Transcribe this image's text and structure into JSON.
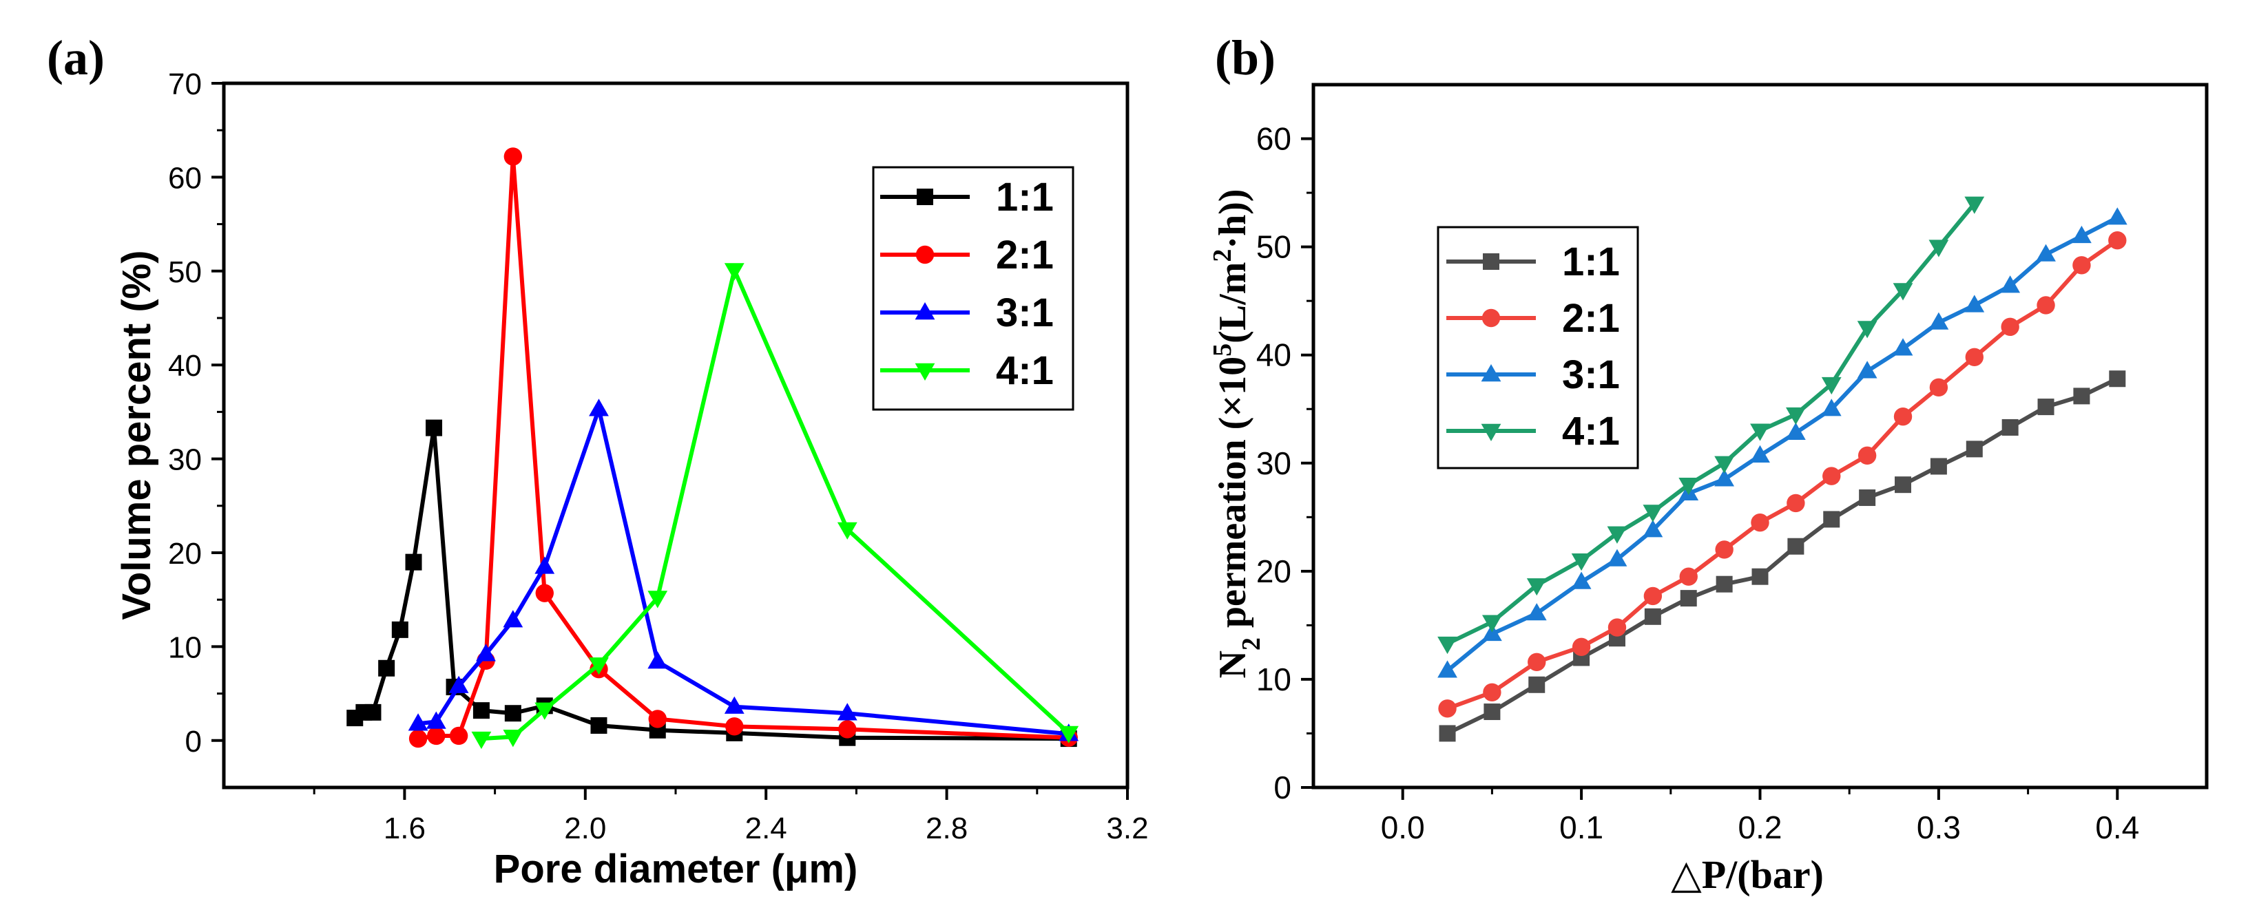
{
  "panels": [
    {
      "label": "(a)",
      "chart_data": {
        "type": "line",
        "xlabel": "Pore diameter (μm)",
        "ylabel": "Volume percent (%)",
        "xlim": [
          1.2,
          3.2
        ],
        "ylim": [
          -5,
          70
        ],
        "xticks": [
          1.6,
          2.0,
          2.4,
          2.8,
          3.2
        ],
        "xtick_labels": [
          "1.6",
          "2.0",
          "2.4",
          "2.8",
          "3.2"
        ],
        "yticks": [
          0,
          10,
          20,
          30,
          40,
          50,
          60,
          70
        ],
        "ytick_labels": [
          "0",
          "10",
          "20",
          "30",
          "40",
          "50",
          "60",
          "70"
        ],
        "legend_position": "top-right",
        "series": [
          {
            "name": "1:1",
            "color": "#000000",
            "marker": "square",
            "x": [
              1.49,
              1.51,
              1.53,
              1.56,
              1.59,
              1.62,
              1.665,
              1.71,
              1.77,
              1.84,
              1.91,
              2.03,
              2.16,
              2.33,
              2.58,
              3.07
            ],
            "y": [
              2.4,
              3.0,
              3.0,
              7.7,
              11.8,
              19.0,
              33.3,
              5.7,
              3.2,
              2.9,
              3.7,
              1.6,
              1.1,
              0.8,
              0.3,
              0.2
            ]
          },
          {
            "name": "2:1",
            "color": "#ff0000",
            "marker": "circle",
            "x": [
              1.63,
              1.67,
              1.72,
              1.78,
              1.84,
              1.91,
              2.03,
              2.16,
              2.33,
              2.58,
              3.07
            ],
            "y": [
              0.2,
              0.5,
              0.5,
              8.5,
              62.2,
              15.7,
              7.6,
              2.3,
              1.5,
              1.2,
              0.3
            ]
          },
          {
            "name": "3:1",
            "color": "#0000ff",
            "marker": "triangle-up",
            "x": [
              1.63,
              1.67,
              1.72,
              1.78,
              1.84,
              1.91,
              2.03,
              2.16,
              2.33,
              2.58,
              3.07
            ],
            "y": [
              1.8,
              2.0,
              5.8,
              9.2,
              12.8,
              18.5,
              35.3,
              8.4,
              3.6,
              2.9,
              0.7
            ]
          },
          {
            "name": "4:1",
            "color": "#00ff00",
            "marker": "triangle-down",
            "x": [
              1.77,
              1.84,
              1.91,
              2.03,
              2.16,
              2.33,
              2.58,
              3.07
            ],
            "y": [
              0.2,
              0.4,
              3.3,
              8.1,
              15.2,
              50.1,
              22.5,
              0.8
            ]
          }
        ]
      }
    },
    {
      "label": "(b)",
      "chart_data": {
        "type": "line",
        "xlabel": "△P/(bar)",
        "ylabel_parts": [
          "N",
          "2",
          " permeation (×10",
          "5",
          "(L/m",
          "2",
          "·h))"
        ],
        "xlim": [
          -0.05,
          0.45
        ],
        "ylim": [
          0,
          65
        ],
        "xticks": [
          0.0,
          0.1,
          0.2,
          0.3,
          0.4
        ],
        "xtick_labels": [
          "0.0",
          "0.1",
          "0.2",
          "0.3",
          "0.4"
        ],
        "yticks": [
          0,
          10,
          20,
          30,
          40,
          50,
          60
        ],
        "ytick_labels": [
          "0",
          "10",
          "20",
          "30",
          "40",
          "50",
          "60"
        ],
        "legend_position": "left-center",
        "series": [
          {
            "name": "1:1",
            "color": "#4d4d4d",
            "marker": "square",
            "x": [
              0.025,
              0.05,
              0.075,
              0.1,
              0.12,
              0.14,
              0.16,
              0.18,
              0.2,
              0.22,
              0.24,
              0.26,
              0.28,
              0.3,
              0.32,
              0.34,
              0.36,
              0.38,
              0.4
            ],
            "y": [
              5.0,
              7.0,
              9.5,
              12.0,
              13.8,
              15.8,
              17.5,
              18.8,
              19.5,
              22.3,
              24.8,
              26.8,
              28.0,
              29.7,
              31.3,
              33.3,
              35.2,
              36.2,
              37.8
            ]
          },
          {
            "name": "2:1",
            "color": "#f0443c",
            "marker": "circle",
            "x": [
              0.025,
              0.05,
              0.075,
              0.1,
              0.12,
              0.14,
              0.16,
              0.18,
              0.2,
              0.22,
              0.24,
              0.26,
              0.28,
              0.3,
              0.32,
              0.34,
              0.36,
              0.38,
              0.4
            ],
            "y": [
              7.3,
              8.8,
              11.6,
              13.0,
              14.8,
              17.7,
              19.5,
              22.0,
              24.5,
              26.3,
              28.8,
              30.7,
              34.3,
              37.0,
              39.8,
              42.6,
              44.6,
              48.3,
              50.6
            ]
          },
          {
            "name": "3:1",
            "color": "#1a7ad4",
            "marker": "triangle-up",
            "x": [
              0.025,
              0.05,
              0.075,
              0.1,
              0.12,
              0.14,
              0.16,
              0.18,
              0.2,
              0.22,
              0.24,
              0.26,
              0.28,
              0.3,
              0.32,
              0.34,
              0.36,
              0.38,
              0.4
            ],
            "y": [
              10.8,
              14.2,
              16.1,
              19.0,
              21.1,
              23.8,
              27.2,
              28.5,
              30.7,
              32.8,
              35.0,
              38.5,
              40.6,
              43.0,
              44.6,
              46.4,
              49.3,
              51.0,
              52.7
            ]
          },
          {
            "name": "4:1",
            "color": "#1e9e6a",
            "marker": "triangle-down",
            "x": [
              0.025,
              0.05,
              0.075,
              0.1,
              0.12,
              0.14,
              0.16,
              0.18,
              0.2,
              0.22,
              0.24,
              0.26,
              0.28,
              0.3,
              0.32
            ],
            "y": [
              13.3,
              15.3,
              18.7,
              21.0,
              23.5,
              25.5,
              28.0,
              30.0,
              33.0,
              34.5,
              37.3,
              42.5,
              46.0,
              50.0,
              54.0
            ]
          }
        ]
      }
    }
  ]
}
